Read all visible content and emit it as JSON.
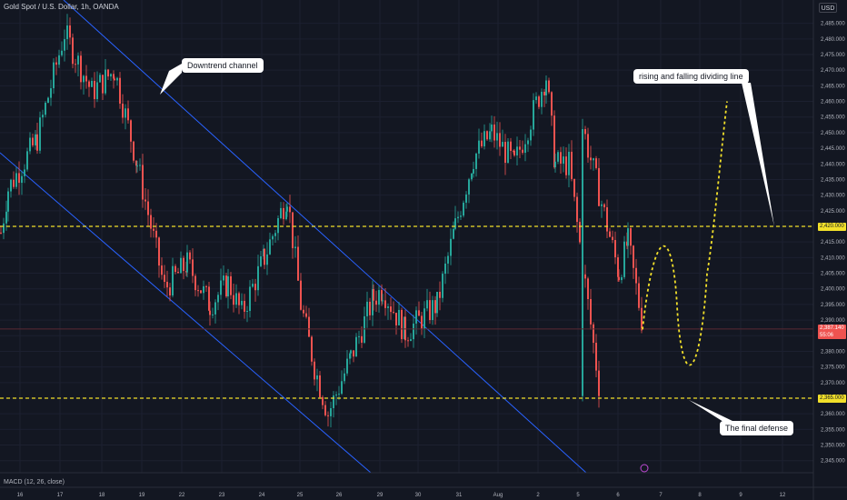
{
  "header": {
    "symbol": "Gold Spot / U.S. Dollar, 1h, OANDA",
    "currency": "USD"
  },
  "indicator": {
    "label": "MACD (12, 26, close)"
  },
  "annotations": {
    "downtrend": "Downtrend channel",
    "dividing": "rising and falling dividing line",
    "final_defense": "The final defense"
  },
  "price_scale": {
    "ticks": [
      "2,485.000",
      "2,480.000",
      "2,475.000",
      "2,470.000",
      "2,465.000",
      "2,460.000",
      "2,455.000",
      "2,450.000",
      "2,445.000",
      "2,440.000",
      "2,435.000",
      "2,430.000",
      "2,425.000",
      "2,420.000",
      "2,415.000",
      "2,410.000",
      "2,405.000",
      "2,400.000",
      "2,395.000",
      "2,390.000",
      "2,385.000",
      "2,380.000",
      "2,375.000",
      "2,370.000",
      "2,365.000",
      "2,360.000",
      "2,355.000",
      "2,350.000",
      "2,345.000"
    ],
    "line_upper": "2,420.000",
    "line_lower": "2,365.000",
    "current_price": "2,387.140",
    "countdown": "55:06"
  },
  "time_scale": {
    "ticks": [
      "16",
      "17",
      "18",
      "19",
      "22",
      "23",
      "24",
      "25",
      "26",
      "29",
      "30",
      "31",
      "Aug",
      "2",
      "5",
      "6",
      "7",
      "8",
      "9",
      "12"
    ]
  },
  "chart_data": {
    "type": "candlestick",
    "ylim": [
      2340,
      2490
    ],
    "series": [
      {
        "name": "Downtrend channel upper",
        "x": [
          "Jul 16",
          "Aug 6"
        ],
        "y": [
          2492,
          2340
        ]
      },
      {
        "name": "Downtrend channel lower",
        "x": [
          "Jul 16",
          "Aug 1"
        ],
        "y": [
          2442,
          2345
        ]
      }
    ],
    "price_close_path": [
      [
        "Jul 16",
        2418
      ],
      [
        "Jul 16",
        2432
      ],
      [
        "Jul 17",
        2448
      ],
      [
        "Jul 17",
        2482
      ],
      [
        "Jul 18",
        2463
      ],
      [
        "Jul 18",
        2470
      ],
      [
        "Jul 19",
        2440
      ],
      [
        "Jul 19",
        2400
      ],
      [
        "Jul 22",
        2408
      ],
      [
        "Jul 22",
        2395
      ],
      [
        "Jul 23",
        2402
      ],
      [
        "Jul 23",
        2392
      ],
      [
        "Jul 24",
        2410
      ],
      [
        "Jul 24",
        2430
      ],
      [
        "Jul 25",
        2395
      ],
      [
        "Jul 25",
        2375
      ],
      [
        "Jul 26",
        2360
      ],
      [
        "Jul 26",
        2378
      ],
      [
        "Jul 29",
        2397
      ],
      [
        "Jul 29",
        2400
      ],
      [
        "Jul 30",
        2386
      ],
      [
        "Jul 30",
        2395
      ],
      [
        "Jul 31",
        2420
      ],
      [
        "Jul 31",
        2442
      ],
      [
        "Aug 1",
        2450
      ],
      [
        "Aug 1",
        2440
      ],
      [
        "Aug 2",
        2468
      ],
      [
        "Aug 2",
        2440
      ],
      [
        "Aug 5",
        2440
      ],
      [
        "Aug 5",
        2365
      ],
      [
        "Aug 5",
        2452
      ],
      [
        "Aug 6",
        2405
      ],
      [
        "Aug 6",
        2415
      ],
      [
        "Aug 6",
        2387
      ]
    ],
    "projection": {
      "name": "Projected path",
      "points": [
        [
          "Aug 6",
          2387
        ],
        [
          "Aug 7",
          2416
        ],
        [
          "Aug 7",
          2373
        ],
        [
          "Aug 9",
          2460
        ]
      ]
    },
    "levels": [
      2420,
      2365
    ],
    "current_price": 2387.14
  },
  "colors": {
    "background": "#131722",
    "bull": "#26a69a",
    "bear": "#ef5350",
    "channel": "#2962ff",
    "level_line": "#f2e02a",
    "axis_text": "#b2b5be"
  }
}
